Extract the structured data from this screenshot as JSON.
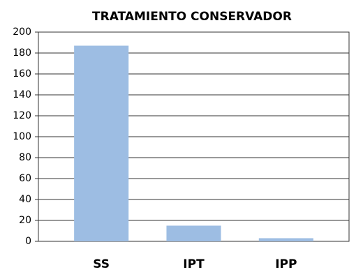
{
  "chart_data": {
    "type": "bar",
    "title": "TRATAMIENTO CONSERVADOR",
    "categories": [
      "SS",
      "IPT",
      "IPP"
    ],
    "values": [
      187,
      15,
      3
    ],
    "color": "#9dbde3",
    "ylim": [
      0,
      200
    ],
    "yticks": [
      0,
      20,
      40,
      60,
      80,
      100,
      120,
      140,
      160,
      180,
      200
    ],
    "grid": true
  }
}
